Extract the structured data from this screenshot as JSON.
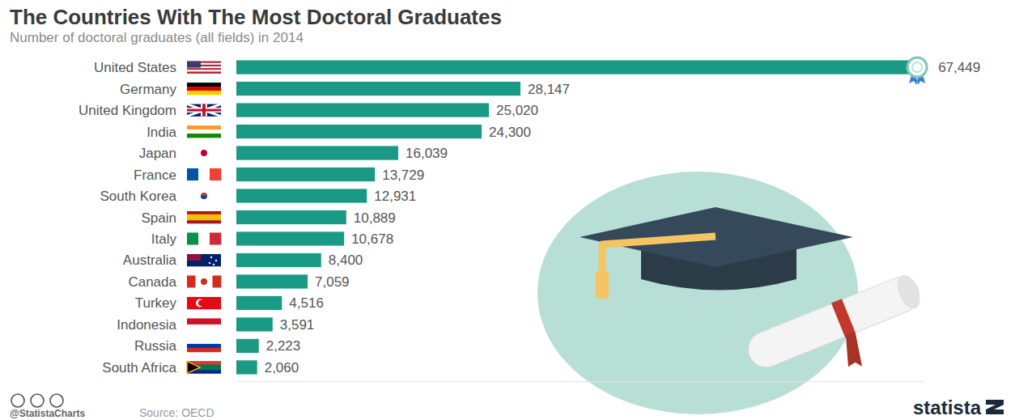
{
  "chart_data": {
    "type": "bar",
    "orientation": "horizontal",
    "title": "The Countries With The Most Doctoral Graduates",
    "subtitle": "Number of doctoral graduates (all fields) in 2014",
    "categories": [
      "United States",
      "Germany",
      "United Kingdom",
      "India",
      "Japan",
      "France",
      "South Korea",
      "Spain",
      "Italy",
      "Australia",
      "Canada",
      "Turkey",
      "Indonesia",
      "Russia",
      "South Africa"
    ],
    "values": [
      67449,
      28147,
      25020,
      24300,
      16039,
      13729,
      12931,
      10889,
      10678,
      8400,
      7059,
      4516,
      3591,
      2223,
      2060
    ],
    "value_labels": [
      "67,449",
      "28,147",
      "25,020",
      "24,300",
      "16,039",
      "13,729",
      "12,931",
      "10,889",
      "10,678",
      "8,400",
      "7,059",
      "4,516",
      "3,591",
      "2,223",
      "2,060"
    ],
    "color": "#1a9a84",
    "xlim": [
      0,
      68000
    ],
    "xticks": [],
    "tick_labels": false,
    "grid": false,
    "data_labels": true,
    "annotations": [
      "@StatistaCharts",
      "Source: OECD",
      "statista"
    ]
  }
}
